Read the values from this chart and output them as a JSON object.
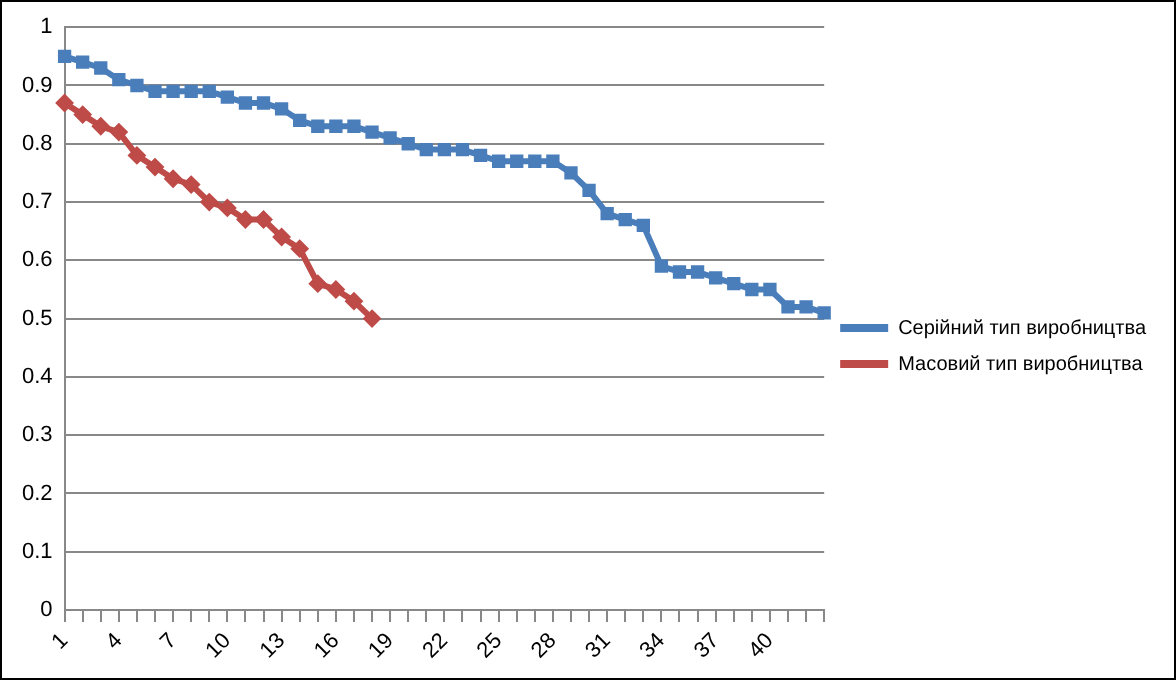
{
  "chart_data": {
    "type": "line",
    "categories": [
      "1",
      null,
      null,
      "4",
      null,
      null,
      "7",
      null,
      null,
      "10",
      null,
      null,
      "13",
      null,
      null,
      "16",
      null,
      null,
      "19",
      null,
      null,
      "22",
      null,
      null,
      "25",
      null,
      null,
      "28",
      null,
      null,
      "31",
      null,
      null,
      "34",
      null,
      null,
      "37",
      null,
      null,
      "40",
      null,
      null,
      null
    ],
    "series": [
      {
        "name": "Серійний тип виробництва",
        "color": "#4a7ebb",
        "marker": "square",
        "values": [
          0.95,
          0.94,
          0.93,
          0.91,
          0.9,
          0.89,
          0.89,
          0.89,
          0.89,
          0.88,
          0.87,
          0.87,
          0.86,
          0.84,
          0.83,
          0.83,
          0.83,
          0.82,
          0.81,
          0.8,
          0.79,
          0.79,
          0.79,
          0.78,
          0.77,
          0.77,
          0.77,
          0.77,
          0.75,
          0.72,
          0.68,
          0.67,
          0.66,
          0.59,
          0.58,
          0.58,
          0.57,
          0.56,
          0.55,
          0.55,
          0.52,
          0.52,
          0.51
        ]
      },
      {
        "name": "Масовий тип виробництва",
        "color": "#be4b48",
        "marker": "diamond",
        "values": [
          0.87,
          0.85,
          0.83,
          0.82,
          0.78,
          0.76,
          0.74,
          0.73,
          0.7,
          0.69,
          0.67,
          0.67,
          0.64,
          0.62,
          0.56,
          0.55,
          0.53,
          0.5,
          null,
          null,
          null,
          null,
          null,
          null,
          null,
          null,
          null,
          null,
          null,
          null,
          null,
          null,
          null,
          null,
          null,
          null,
          null,
          null,
          null,
          null,
          null,
          null,
          null
        ]
      }
    ],
    "ylim": [
      0,
      1
    ],
    "yticks": [
      0,
      0.1,
      0.2,
      0.3,
      0.4,
      0.5,
      0.6,
      0.7,
      0.8,
      0.9,
      1
    ],
    "grid": "y",
    "legend": "right",
    "line_style": "solid"
  }
}
